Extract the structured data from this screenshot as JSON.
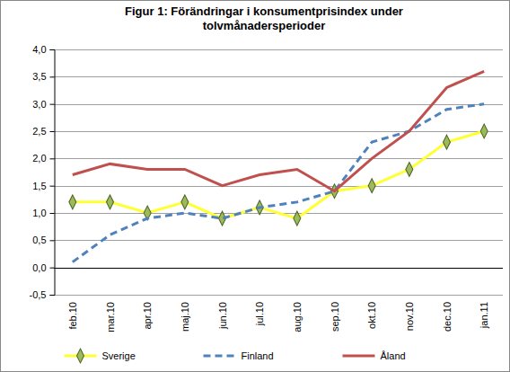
{
  "chart_data": {
    "type": "line",
    "title": "Figur 1: Förändringar i konsumentprisindex under tolvmånadersperioder",
    "categories": [
      "feb.10",
      "mar.10",
      "apr.10",
      "maj.10",
      "jun.10",
      "jul.10",
      "aug.10",
      "sep.10",
      "okt.10",
      "nov.10",
      "dec.10",
      "jan.11"
    ],
    "series": [
      {
        "name": "Sverige",
        "color": "#ffff33",
        "marker": "diamond",
        "line_style": "solid",
        "values": [
          1.2,
          1.2,
          1.0,
          1.2,
          0.9,
          1.1,
          0.9,
          1.4,
          1.5,
          1.8,
          2.3,
          2.5
        ]
      },
      {
        "name": "Finland",
        "color": "#4f81bd",
        "marker": "none",
        "line_style": "dashed",
        "values": [
          0.1,
          0.6,
          0.9,
          1.0,
          0.9,
          1.1,
          1.2,
          1.4,
          2.3,
          2.5,
          2.9,
          3.0
        ]
      },
      {
        "name": "Åland",
        "color": "#c0504d",
        "marker": "none",
        "line_style": "solid",
        "values": [
          1.7,
          1.9,
          1.8,
          1.8,
          1.5,
          1.7,
          1.8,
          1.4,
          2.0,
          2.5,
          3.3,
          3.6
        ]
      }
    ],
    "ylim": [
      -0.5,
      4.0
    ],
    "yticks": [
      {
        "value": -0.5,
        "label": "-0,5"
      },
      {
        "value": 0,
        "label": "0,0"
      },
      {
        "value": 0.5,
        "label": "0,5"
      },
      {
        "value": 1.0,
        "label": "1,0"
      },
      {
        "value": 1.5,
        "label": "1,5"
      },
      {
        "value": 2.0,
        "label": "2,0"
      },
      {
        "value": 2.5,
        "label": "2,5"
      },
      {
        "value": 3.0,
        "label": "3,0"
      },
      {
        "value": 3.5,
        "label": "3,5"
      },
      {
        "value": 4.0,
        "label": "4,0"
      }
    ],
    "grid": true,
    "legend": "bottom"
  }
}
